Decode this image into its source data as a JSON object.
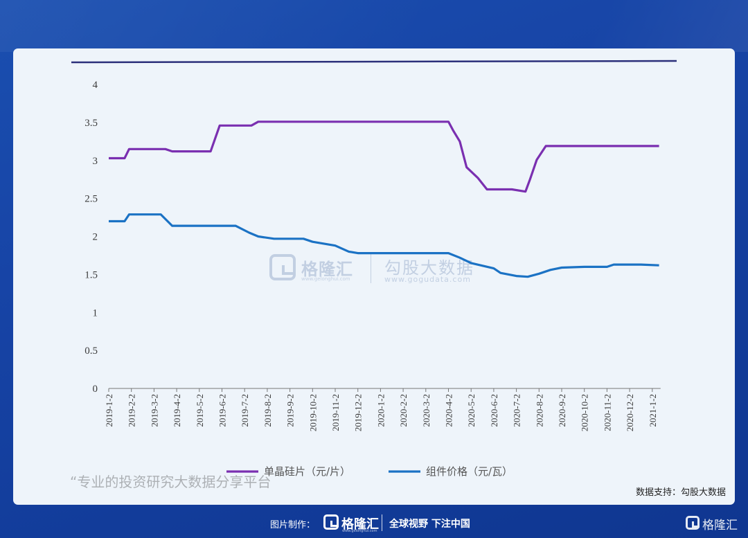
{
  "chart_data": {
    "type": "line",
    "x": [
      "2019-1-2",
      "2019-2-2",
      "2019-3-2",
      "2019-4-2",
      "2019-5-2",
      "2019-6-2",
      "2019-7-2",
      "2019-8-2",
      "2019-9-2",
      "2019-10-2",
      "2019-11-2",
      "2019-12-2",
      "2020-1-2",
      "2020-2-2",
      "2020-3-2",
      "2020-4-2",
      "2020-5-2",
      "2020-6-2",
      "2020-7-2",
      "2020-8-2",
      "2020-9-2",
      "2020-10-2",
      "2020-11-2",
      "2020-12-2",
      "2021-1-2"
    ],
    "ylim": [
      0,
      4
    ],
    "yticks": [
      "0",
      "0.5",
      "1",
      "1.5",
      "2",
      "2.5",
      "3",
      "3.5",
      "4"
    ],
    "series": [
      {
        "name": "单晶硅片（元/片）",
        "color": "#7a2fb0",
        "points": [
          [
            0,
            3.03
          ],
          [
            0.7,
            3.03
          ],
          [
            0.9,
            3.15
          ],
          [
            2.5,
            3.15
          ],
          [
            2.8,
            3.12
          ],
          [
            4.5,
            3.12
          ],
          [
            4.9,
            3.46
          ],
          [
            6.3,
            3.46
          ],
          [
            6.6,
            3.51
          ],
          [
            15.0,
            3.51
          ],
          [
            15.2,
            3.4
          ],
          [
            15.5,
            3.25
          ],
          [
            15.8,
            2.91
          ],
          [
            16.3,
            2.77
          ],
          [
            16.7,
            2.62
          ],
          [
            17.8,
            2.62
          ],
          [
            18.4,
            2.59
          ],
          [
            18.6,
            2.75
          ],
          [
            18.9,
            3.01
          ],
          [
            19.3,
            3.19
          ],
          [
            24.3,
            3.19
          ]
        ]
      },
      {
        "name": "组件价格（元/瓦）",
        "color": "#1b72c4",
        "points": [
          [
            0,
            2.2
          ],
          [
            0.7,
            2.2
          ],
          [
            0.9,
            2.29
          ],
          [
            2.3,
            2.29
          ],
          [
            2.8,
            2.14
          ],
          [
            5.6,
            2.14
          ],
          [
            6.2,
            2.05
          ],
          [
            6.6,
            2.0
          ],
          [
            7.3,
            1.97
          ],
          [
            8.6,
            1.97
          ],
          [
            9.0,
            1.93
          ],
          [
            10.0,
            1.88
          ],
          [
            10.6,
            1.8
          ],
          [
            11.0,
            1.78
          ],
          [
            15.0,
            1.78
          ],
          [
            15.5,
            1.72
          ],
          [
            16.0,
            1.65
          ],
          [
            17.0,
            1.58
          ],
          [
            17.3,
            1.52
          ],
          [
            18.0,
            1.48
          ],
          [
            18.5,
            1.47
          ],
          [
            19.0,
            1.51
          ],
          [
            19.5,
            1.56
          ],
          [
            20.0,
            1.59
          ],
          [
            21.0,
            1.6
          ],
          [
            22.0,
            1.6
          ],
          [
            22.3,
            1.63
          ],
          [
            23.5,
            1.63
          ],
          [
            24.3,
            1.62
          ]
        ]
      }
    ],
    "legend": [
      "单晶硅片（元/片）",
      "组件价格（元/瓦）"
    ],
    "grid": false
  },
  "source_text": "数据支持：勾股大数据",
  "watermark": {
    "brand": "格隆汇",
    "brand_url": "www.gelonghui.com",
    "brand2": "勾股大数据",
    "brand2_url": "www.gogudata.com"
  },
  "faint_caption": "“专业的投资研究大数据分享平台",
  "footer": {
    "made_by": "图片制作：",
    "brand": "格隆汇",
    "brand_url": "www.gelonghui.com",
    "slogan": "全球视野 下注中国"
  },
  "corner_brand": "格隆汇"
}
